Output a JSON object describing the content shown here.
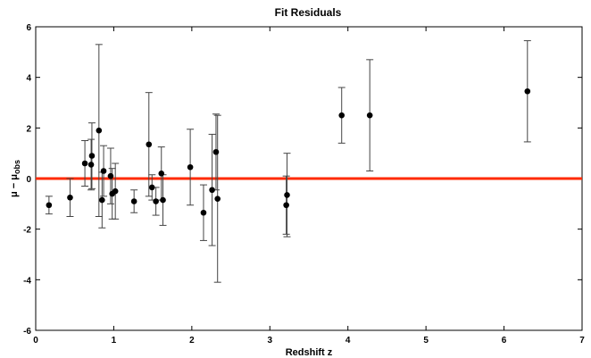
{
  "chart_data": {
    "type": "scatter",
    "title": "Fit Residuals",
    "xlabel": "Redshift z",
    "ylabel": "μ − μ",
    "ylabel_subscript": "obs",
    "xlim": [
      0,
      7
    ],
    "ylim": [
      -6,
      6
    ],
    "xticks": [
      0,
      1,
      2,
      3,
      4,
      5,
      6,
      7
    ],
    "yticks": [
      -6,
      -4,
      -2,
      0,
      2,
      4,
      6
    ],
    "grid": false,
    "reference_line": {
      "y": 0,
      "color": "#ff2a00"
    },
    "marker_color": "#000000",
    "errorbar_color": "#444444",
    "points": [
      {
        "x": 0.17,
        "y": -1.05,
        "err": 0.35
      },
      {
        "x": 0.44,
        "y": -0.75,
        "err": 0.75
      },
      {
        "x": 0.63,
        "y": 0.6,
        "err": 0.9
      },
      {
        "x": 0.71,
        "y": 0.55,
        "err": 1.0
      },
      {
        "x": 0.72,
        "y": 0.9,
        "err": 1.3
      },
      {
        "x": 0.81,
        "y": 1.9,
        "err": 3.4
      },
      {
        "x": 0.85,
        "y": -0.85,
        "err": 1.1
      },
      {
        "x": 0.87,
        "y": 0.3,
        "err": 1.0
      },
      {
        "x": 0.96,
        "y": 0.1,
        "err": 1.1
      },
      {
        "x": 0.98,
        "y": -0.6,
        "err": 1.0
      },
      {
        "x": 1.02,
        "y": -0.5,
        "err": 1.1
      },
      {
        "x": 1.26,
        "y": -0.9,
        "err": 0.45
      },
      {
        "x": 1.45,
        "y": 1.35,
        "err": 2.05
      },
      {
        "x": 1.49,
        "y": -0.35,
        "err": 0.5
      },
      {
        "x": 1.54,
        "y": -0.9,
        "err": 0.55
      },
      {
        "x": 1.61,
        "y": 0.2,
        "err": 1.05
      },
      {
        "x": 1.63,
        "y": -0.85,
        "err": 1.0
      },
      {
        "x": 1.98,
        "y": 0.45,
        "err": 1.5
      },
      {
        "x": 2.15,
        "y": -1.35,
        "err": 1.1
      },
      {
        "x": 2.26,
        "y": -0.45,
        "err": 2.2
      },
      {
        "x": 2.31,
        "y": 1.05,
        "err": 1.5
      },
      {
        "x": 2.33,
        "y": -0.8,
        "err": 3.3
      },
      {
        "x": 3.21,
        "y": -1.05,
        "err": 1.15
      },
      {
        "x": 3.22,
        "y": -0.65,
        "err": 1.65
      },
      {
        "x": 3.92,
        "y": 2.5,
        "err": 1.1
      },
      {
        "x": 4.28,
        "y": 2.5,
        "err": 2.2
      },
      {
        "x": 6.3,
        "y": 3.45,
        "err": 2.0
      }
    ]
  }
}
